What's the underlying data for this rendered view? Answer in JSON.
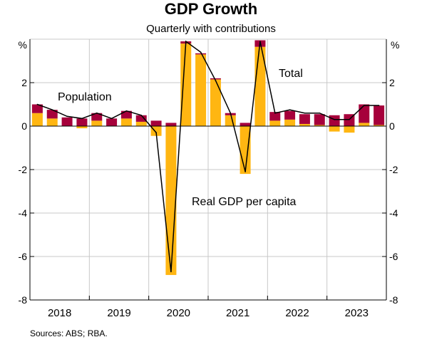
{
  "chart_data": {
    "type": "bar",
    "title": "GDP Growth",
    "subtitle": "Quarterly with contributions",
    "ylabel_left": "%",
    "ylabel_right": "%",
    "ylim": [
      -8,
      4
    ],
    "yticks": [
      -8,
      -6,
      -4,
      -2,
      0,
      2
    ],
    "year_labels": [
      "2018",
      "2019",
      "2020",
      "2021",
      "2022",
      "2023"
    ],
    "source": "Sources: ABS; RBA.",
    "colors": {
      "population": "#a6003b",
      "real_gdp_per_capita": "#ffb612",
      "total": "#000000",
      "axis": "#000000",
      "grid": "#c8c8c8"
    },
    "annotations": {
      "population": "Population",
      "total": "Total",
      "real_gdp_per_capita": "Real GDP per capita"
    },
    "series": [
      {
        "name": "Population",
        "type": "stacked-bar",
        "values": [
          0.4,
          0.4,
          0.4,
          0.35,
          0.35,
          0.35,
          0.35,
          0.3,
          0.25,
          0.15,
          0.1,
          0.05,
          0.05,
          0.1,
          0.15,
          0.3,
          0.4,
          0.4,
          0.45,
          0.5,
          0.5,
          0.55,
          0.85,
          0.9
        ]
      },
      {
        "name": "Real GDP per capita",
        "type": "stacked-bar",
        "values": [
          0.6,
          0.35,
          0.0,
          -0.1,
          0.25,
          0.0,
          0.35,
          0.2,
          -0.45,
          -6.85,
          3.8,
          3.3,
          2.15,
          0.5,
          -2.2,
          3.65,
          0.25,
          0.3,
          0.1,
          0.05,
          -0.25,
          -0.3,
          0.15,
          0.05
        ]
      },
      {
        "name": "Total",
        "type": "line",
        "values": [
          1.0,
          0.75,
          0.45,
          0.35,
          0.6,
          0.35,
          0.7,
          0.5,
          -0.3,
          -6.7,
          3.9,
          3.4,
          2.1,
          0.6,
          -2.1,
          3.9,
          0.6,
          0.75,
          0.6,
          0.6,
          0.3,
          0.3,
          0.95,
          0.95
        ]
      }
    ]
  }
}
